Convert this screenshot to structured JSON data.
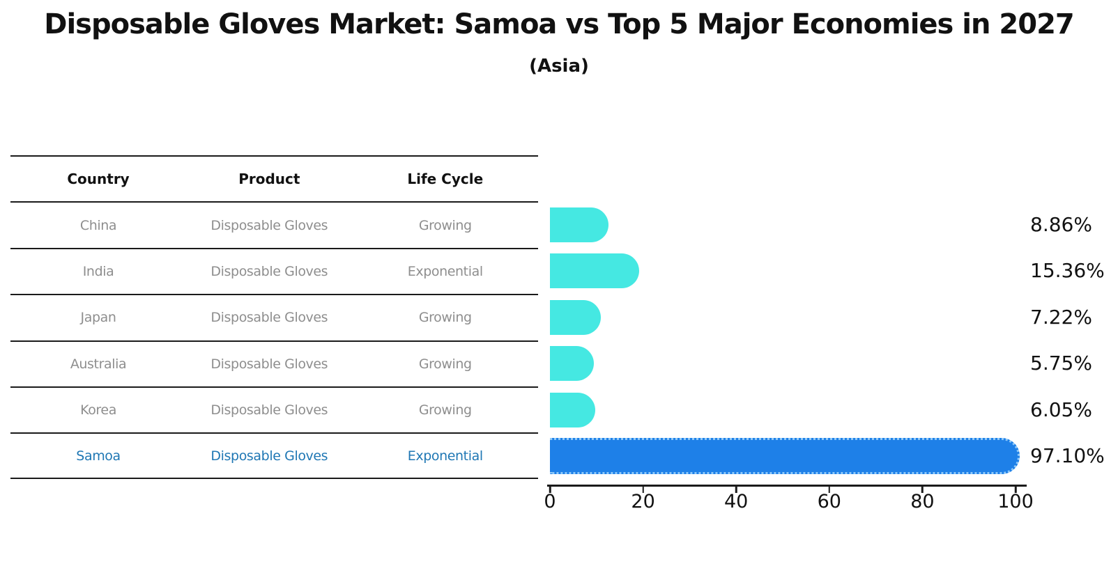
{
  "title": "Disposable Gloves Market: Samoa vs Top 5 Major Economies in 2027",
  "subtitle": "(Asia)",
  "table": {
    "headers": [
      "Country",
      "Product",
      "Life Cycle"
    ],
    "rows": [
      {
        "country": "China",
        "product": "Disposable Gloves",
        "life_cycle": "Growing",
        "highlight": false
      },
      {
        "country": "India",
        "product": "Disposable Gloves",
        "life_cycle": "Exponential",
        "highlight": false
      },
      {
        "country": "Japan",
        "product": "Disposable Gloves",
        "life_cycle": "Growing",
        "highlight": false
      },
      {
        "country": "Australia",
        "product": "Disposable Gloves",
        "life_cycle": "Growing",
        "highlight": false
      },
      {
        "country": "Korea",
        "product": "Disposable Gloves",
        "life_cycle": "Growing",
        "highlight": false
      },
      {
        "country": "Samoa",
        "product": "Disposable Gloves",
        "life_cycle": "Exponential",
        "highlight": true
      }
    ]
  },
  "chart_data": {
    "type": "bar",
    "orientation": "horizontal",
    "title": "Disposable Gloves Market: Samoa vs Top 5 Major Economies in 2027",
    "subtitle": "(Asia)",
    "categories": [
      "China",
      "India",
      "Japan",
      "Australia",
      "Korea",
      "Samoa"
    ],
    "values": [
      8.86,
      15.36,
      7.22,
      5.75,
      6.05,
      97.1
    ],
    "value_labels": [
      "8.86%",
      "15.36%",
      "7.22%",
      "5.75%",
      "6.05%",
      "97.10%"
    ],
    "highlight_category": "Samoa",
    "xlabel": "",
    "ylabel": "",
    "xlim": [
      0,
      100
    ],
    "x_ticks": [
      0,
      20,
      40,
      60,
      80,
      100
    ],
    "grid": false,
    "legend": "none",
    "colors": {
      "bar_default": "#45e8e2",
      "bar_highlight": "#1e80e8",
      "highlight_border": "#96cdfa",
      "highlight_text": "#1f77b4",
      "table_text": "#8e8e8e",
      "heading_text": "#111111"
    }
  }
}
